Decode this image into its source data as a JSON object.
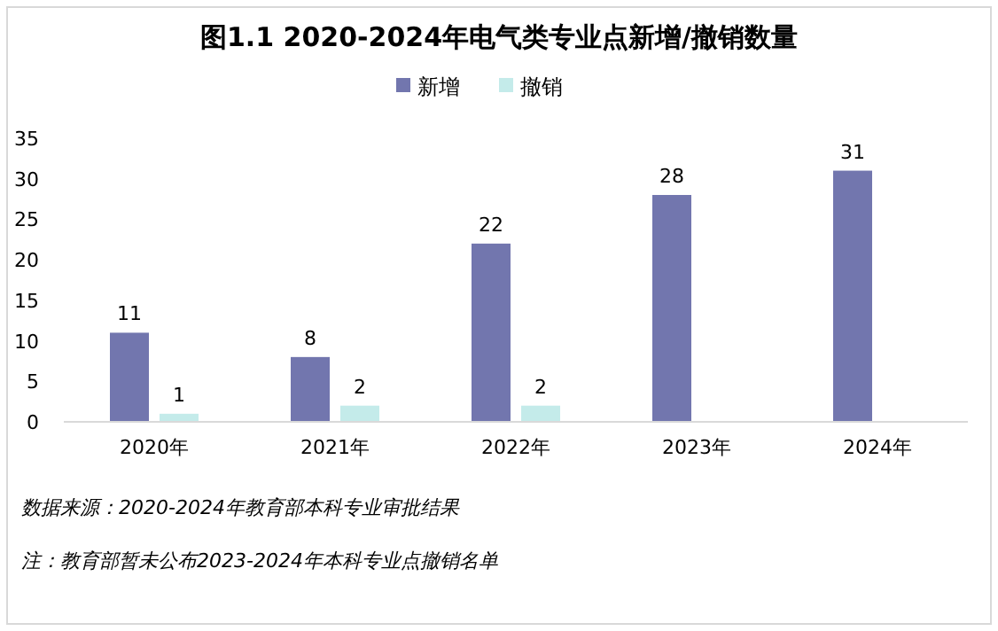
{
  "chart_data": {
    "type": "bar",
    "title": "图1.1 2020-2024年电气类专业点新增/撤销数量",
    "categories": [
      "2020年",
      "2021年",
      "2022年",
      "2023年",
      "2024年"
    ],
    "series": [
      {
        "name": "新增",
        "color": "#7276ae",
        "values": [
          11,
          8,
          22,
          28,
          31
        ]
      },
      {
        "name": "撤销",
        "color": "#c4ebea",
        "values": [
          1,
          2,
          2,
          null,
          null
        ]
      }
    ],
    "ylim": [
      0,
      35
    ],
    "yticks": [
      0,
      5,
      10,
      15,
      20,
      25,
      30,
      35
    ],
    "grid": false,
    "legend": "top",
    "data_labels": true,
    "annotations": [
      "数据来源：2020-2024年教育部本科专业审批结果",
      "注：教育部暂未公布2023-2024年本科专业点撤销名单"
    ]
  }
}
